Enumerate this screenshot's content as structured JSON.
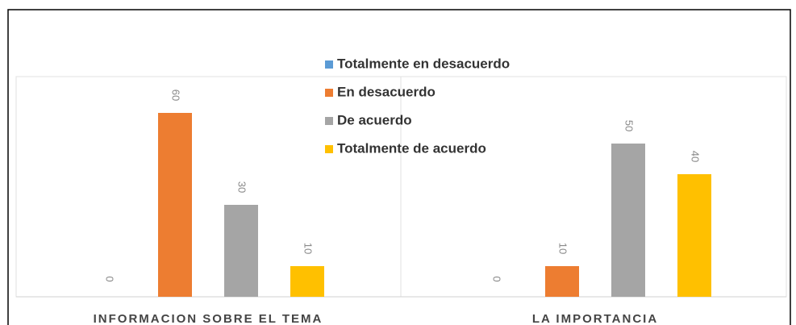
{
  "chart_data": {
    "type": "bar",
    "categories": [
      "INFORMACION SOBRE EL TEMA",
      "LA IMPORTANCIA"
    ],
    "series": [
      {
        "name": "Totalmente en desacuerdo",
        "color": "#5b9bd5",
        "values": [
          0,
          0
        ]
      },
      {
        "name": "En desacuerdo",
        "color": "#ed7d31",
        "values": [
          60,
          10
        ]
      },
      {
        "name": "De acuerdo",
        "color": "#a5a5a5",
        "values": [
          30,
          50
        ]
      },
      {
        "name": "Totalmente de acuerdo",
        "color": "#ffc000",
        "values": [
          10,
          40
        ]
      }
    ],
    "ylim": [
      0,
      70
    ]
  }
}
